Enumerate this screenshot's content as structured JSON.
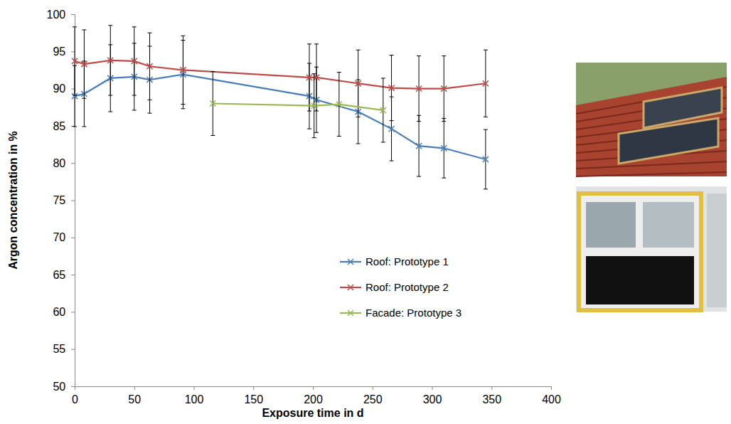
{
  "chart_data": {
    "type": "line",
    "x_label": "Exposure time in d",
    "y_label": "Argon concentration in %",
    "xlim": [
      0,
      400
    ],
    "xticks": [
      0,
      50,
      100,
      150,
      200,
      250,
      300,
      350,
      400
    ],
    "ylim": [
      50,
      100
    ],
    "yticks": [
      50,
      55,
      60,
      65,
      70,
      75,
      80,
      85,
      90,
      95,
      100
    ],
    "grid": false,
    "legend": "center right",
    "marker": "x",
    "line_style": "solid",
    "series": [
      {
        "name": "Roof: Prototype 1",
        "color": "#4a7ebb",
        "x": [
          0,
          8,
          30,
          50,
          63,
          91,
          197,
          203,
          238,
          266,
          289,
          310,
          345
        ],
        "values": [
          89.0,
          89.3,
          91.4,
          91.6,
          91.2,
          91.9,
          89.0,
          88.5,
          86.9,
          84.6,
          82.3,
          82.0,
          80.5
        ],
        "errors": [
          4.1,
          4.4,
          4.5,
          4.5,
          4.5,
          4.6,
          4.4,
          4.4,
          4.3,
          4.3,
          4.1,
          4.0,
          4.0
        ]
      },
      {
        "name": "Roof: Prototype 2",
        "color": "#be4b48",
        "x": [
          0,
          8,
          30,
          50,
          63,
          91,
          197,
          203,
          238,
          266,
          289,
          310,
          345
        ],
        "values": [
          93.7,
          93.3,
          93.8,
          93.7,
          93.0,
          92.5,
          91.5,
          91.5,
          90.7,
          90.1,
          90.0,
          90.0,
          90.7
        ],
        "errors": [
          4.6,
          4.6,
          4.7,
          4.6,
          4.5,
          4.6,
          4.5,
          4.5,
          4.5,
          4.4,
          4.4,
          4.4,
          4.5
        ]
      },
      {
        "name": "Facade: Prototype 3",
        "color": "#98b954",
        "x": [
          116,
          201,
          222,
          259
        ],
        "values": [
          88.0,
          87.7,
          87.9,
          87.1
        ],
        "errors": [
          4.3,
          4.3,
          4.3,
          4.3
        ]
      }
    ]
  }
}
